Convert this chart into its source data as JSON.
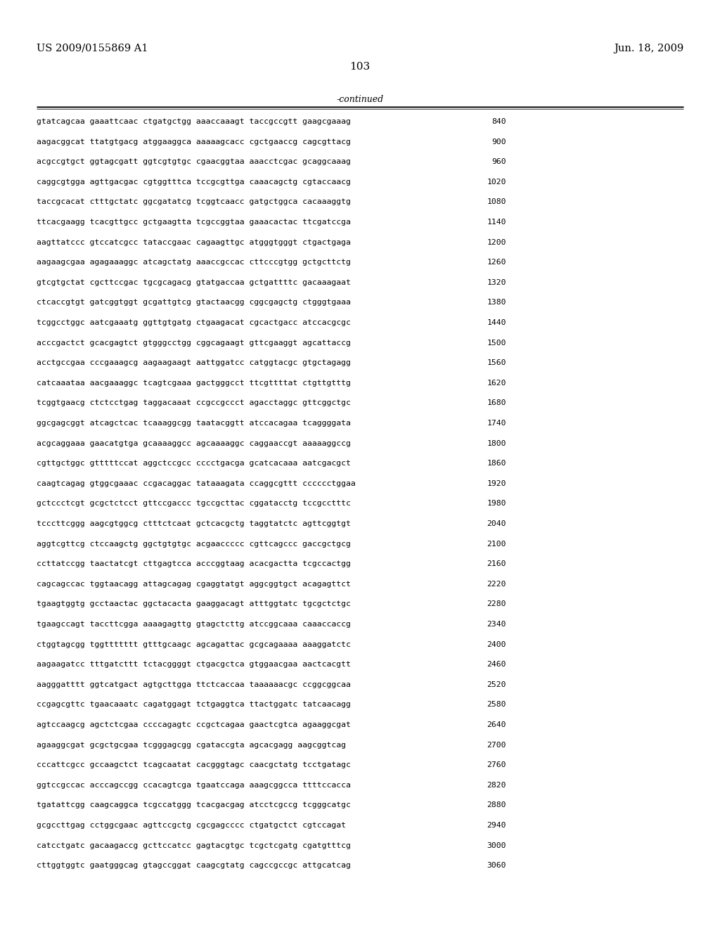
{
  "header_left": "US 2009/0155869 A1",
  "header_right": "Jun. 18, 2009",
  "page_number": "103",
  "continued_label": "-continued",
  "background_color": "#ffffff",
  "text_color": "#000000",
  "font_size_header": 10.5,
  "font_size_body": 8.2,
  "font_size_page": 11,
  "sequence_lines": [
    {
      "seq": "gtatcagcaa gaaattcaac ctgatgctgg aaaccaaagt taccgccgtt gaagcgaaag",
      "num": "840"
    },
    {
      "seq": "aagacggcat ttatgtgacg atggaaggca aaaaagcacc cgctgaaccg cagcgttacg",
      "num": "900"
    },
    {
      "seq": "acgccgtgct ggtagcgatt ggtcgtgtgc cgaacggtaa aaacctcgac gcaggcaaag",
      "num": "960"
    },
    {
      "seq": "caggcgtgga agttgacgac cgtggtttca tccgcgttga caaacagctg cgtaccaacg",
      "num": "1020"
    },
    {
      "seq": "taccgcacat ctttgctatc ggcgatatcg tcggtcaacc gatgctggca cacaaaggtg",
      "num": "1080"
    },
    {
      "seq": "ttcacgaagg tcacgttgcc gctgaagtta tcgccggtaa gaaacactac ttcgatccga",
      "num": "1140"
    },
    {
      "seq": "aagttatccc gtccatcgcc tataccgaac cagaagttgc atgggtgggt ctgactgaga",
      "num": "1200"
    },
    {
      "seq": "aagaagcgaa agagaaaggc atcagctatg aaaccgccac cttcccgtgg gctgcttctg",
      "num": "1260"
    },
    {
      "seq": "gtcgtgctat cgcttccgac tgcgcagacg gtatgaccaa gctgattttc gacaaagaat",
      "num": "1320"
    },
    {
      "seq": "ctcaccgtgt gatcggtggt gcgattgtcg gtactaacgg cggcgagctg ctgggtgaaa",
      "num": "1380"
    },
    {
      "seq": "tcggcctggc aatcgaaatg ggttgtgatg ctgaagacat cgcactgacc atccacgcgc",
      "num": "1440"
    },
    {
      "seq": "acccgactct gcacgagtct gtgggcctgg cggcagaagt gttcgaaggt agcattaccg",
      "num": "1500"
    },
    {
      "seq": "acctgccgaa cccgaaagcg aagaagaagt aattggatcc catggtacgc gtgctagagg",
      "num": "1560"
    },
    {
      "seq": "catcaaataa aacgaaaggc tcagtcgaaa gactgggcct ttcgttttat ctgttgtttg",
      "num": "1620"
    },
    {
      "seq": "tcggtgaacg ctctcctgag taggacaaat ccgccgccct agacctaggc gttcggctgc",
      "num": "1680"
    },
    {
      "seq": "ggcgagcggt atcagctcac tcaaaggcgg taatacggtt atccacagaa tcaggggata",
      "num": "1740"
    },
    {
      "seq": "acgcaggaaa gaacatgtga gcaaaaggcc agcaaaaggc caggaaccgt aaaaaggccg",
      "num": "1800"
    },
    {
      "seq": "cgttgctggc gtttttccat aggctccgcc cccctgacga gcatcacaaa aatcgacgct",
      "num": "1860"
    },
    {
      "seq": "caagtcagag gtggcgaaac ccgacaggac tataaagata ccaggcgttt cccccctggaa",
      "num": "1920"
    },
    {
      "seq": "gctccctcgt gcgctctcct gttccgaccc tgccgcttac cggatacctg tccgcctttc",
      "num": "1980"
    },
    {
      "seq": "tcccttcggg aagcgtggcg ctttctcaat gctcacgctg taggtatctc agttcggtgt",
      "num": "2040"
    },
    {
      "seq": "aggtcgttcg ctccaagctg ggctgtgtgc acgaaccccc cgttcagccc gaccgctgcg",
      "num": "2100"
    },
    {
      "seq": "ccttatccgg taactatcgt cttgagtcca acccggtaag acacgactta tcgccactgg",
      "num": "2160"
    },
    {
      "seq": "cagcagccac tggtaacagg attagcagag cgaggtatgt aggcggtgct acagagttct",
      "num": "2220"
    },
    {
      "seq": "tgaagtggtg gcctaactac ggctacacta gaaggacagt atttggtatc tgcgctctgc",
      "num": "2280"
    },
    {
      "seq": "tgaagccagt taccttcgga aaaagagttg gtagctcttg atccggcaaa caaaccaccg",
      "num": "2340"
    },
    {
      "seq": "ctggtagcgg tggttttttt gtttgcaagc agcagattac gcgcagaaaa aaaggatctc",
      "num": "2400"
    },
    {
      "seq": "aagaagatcc tttgatcttt tctacggggt ctgacgctca gtggaacgaa aactcacgtt",
      "num": "2460"
    },
    {
      "seq": "aagggatttt ggtcatgact agtgcttgga ttctcaccaa taaaaaacgc ccggcggcaa",
      "num": "2520"
    },
    {
      "seq": "ccgagcgttc tgaacaaatc cagatggagt tctgaggtca ttactggatc tatcaacagg",
      "num": "2580"
    },
    {
      "seq": "agtccaagcg agctctcgaa ccccagagtc ccgctcagaa gaactcgtca agaaggcgat",
      "num": "2640"
    },
    {
      "seq": "agaaggcgat gcgctgcgaa tcgggagcgg cgataccgta agcacgagg aagcggtcag",
      "num": "2700"
    },
    {
      "seq": "cccattcgcc gccaagctct tcagcaatat cacgggtagc caacgctatg tcctgatagc",
      "num": "2760"
    },
    {
      "seq": "ggtccgccac acccagccgg ccacagtcga tgaatccaga aaagcggcca ttttccacca",
      "num": "2820"
    },
    {
      "seq": "tgatattcgg caagcaggca tcgccatggg tcacgacgag atcctcgccg tcgggcatgc",
      "num": "2880"
    },
    {
      "seq": "gcgccttgag cctggcgaac agttccgctg cgcgagcccc ctgatgctct cgtccagat",
      "num": "2940"
    },
    {
      "seq": "catcctgatc gacaagaccg gcttccatcc gagtacgtgc tcgctcgatg cgatgtttcg",
      "num": "3000"
    },
    {
      "seq": "cttggtggtc gaatgggcag gtagccggat caagcgtatg cagccgccgc attgcatcag",
      "num": "3060"
    }
  ]
}
